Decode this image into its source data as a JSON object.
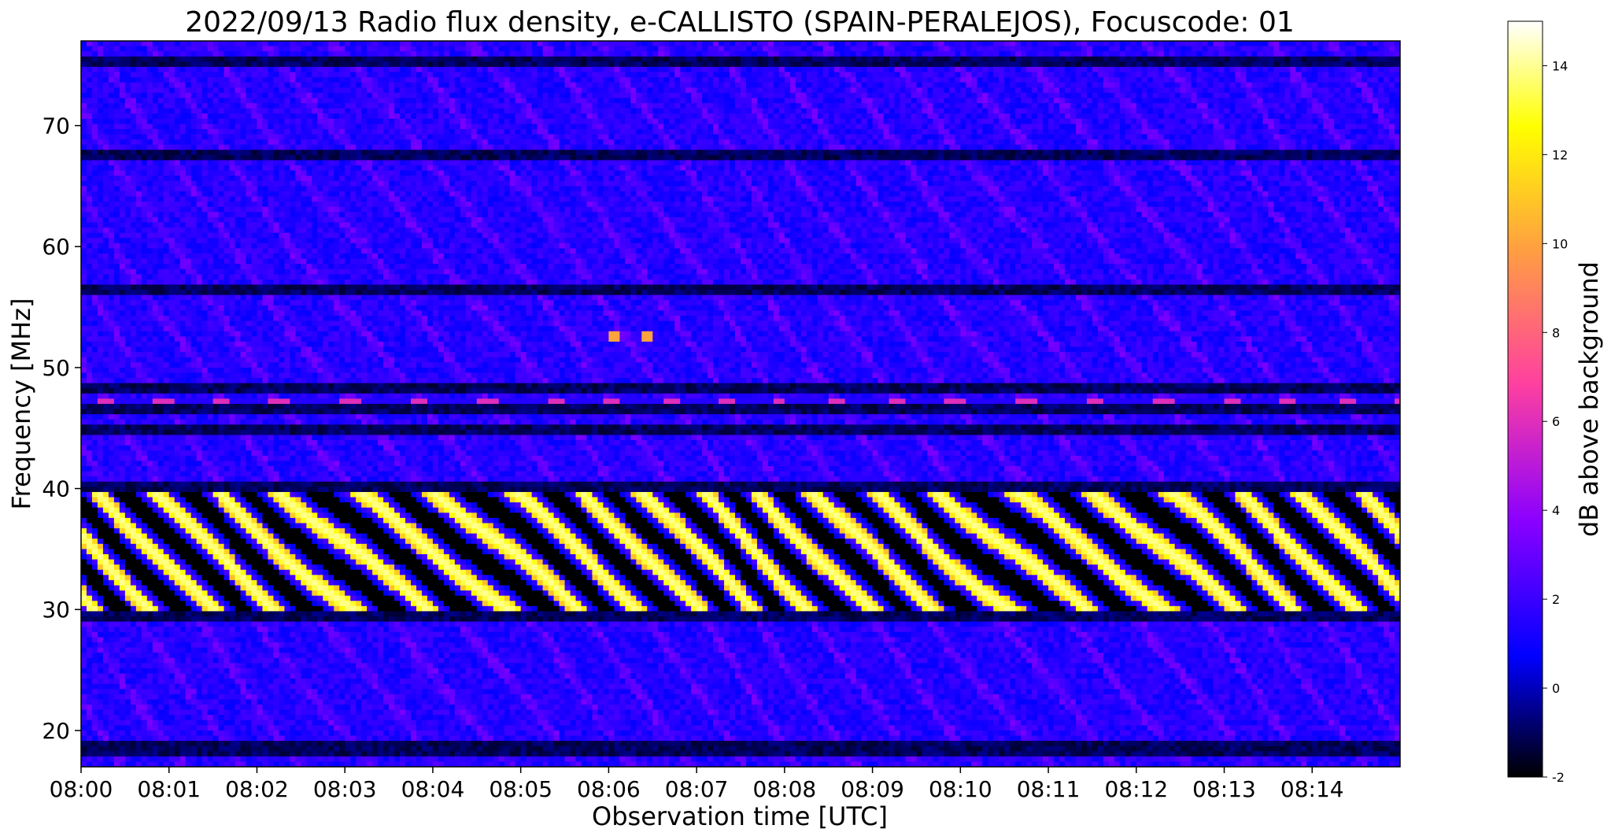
{
  "chart_data": {
    "type": "heatmap",
    "title": "2022/09/13  Radio flux density, e-CALLISTO (SPAIN-PERALEJOS), Focuscode: 01",
    "xlabel": "Observation time [UTC]",
    "ylabel": "Frequency [MHz]",
    "colorbar_label": "dB above background",
    "x_ticks": [
      "08:00",
      "08:01",
      "08:02",
      "08:03",
      "08:04",
      "08:05",
      "08:06",
      "08:07",
      "08:08",
      "08:09",
      "08:10",
      "08:11",
      "08:12",
      "08:13",
      "08:14"
    ],
    "x_range": [
      "08:00:00",
      "08:15:00"
    ],
    "y_ticks": [
      20,
      30,
      40,
      50,
      60,
      70
    ],
    "y_range": [
      17,
      77
    ],
    "colorbar_ticks": [
      -2,
      0,
      2,
      4,
      6,
      8,
      10,
      12,
      14
    ],
    "colorbar_range": [
      -2,
      15
    ],
    "colormap": "gnuplot2",
    "colormap_stops": [
      "#000000",
      "#0000ff",
      "#8b00ff",
      "#ff40a0",
      "#ffa040",
      "#ffff00",
      "#ffffff"
    ],
    "features": [
      {
        "freq_MHz": [
          30,
          40
        ],
        "level_dB": 13,
        "pattern": "strong wavy interference band (bright orange/yellow stripes)"
      },
      {
        "freq_MHz": [
          46.5,
          47.5
        ],
        "level_dB": 6,
        "pattern": "periodic magenta spots"
      },
      {
        "freq_MHz": [
          52.2,
          52.8
        ],
        "level_dB": 9,
        "pattern": "isolated bright spots near 08:06"
      },
      {
        "freq_MHz": [
          17,
          30
        ],
        "level_dB": 1,
        "pattern": "low-level blue noise"
      },
      {
        "freq_MHz": [
          48,
          77
        ],
        "level_dB": 1,
        "pattern": "low-level blue noise with horizontal dark bands"
      }
    ]
  }
}
